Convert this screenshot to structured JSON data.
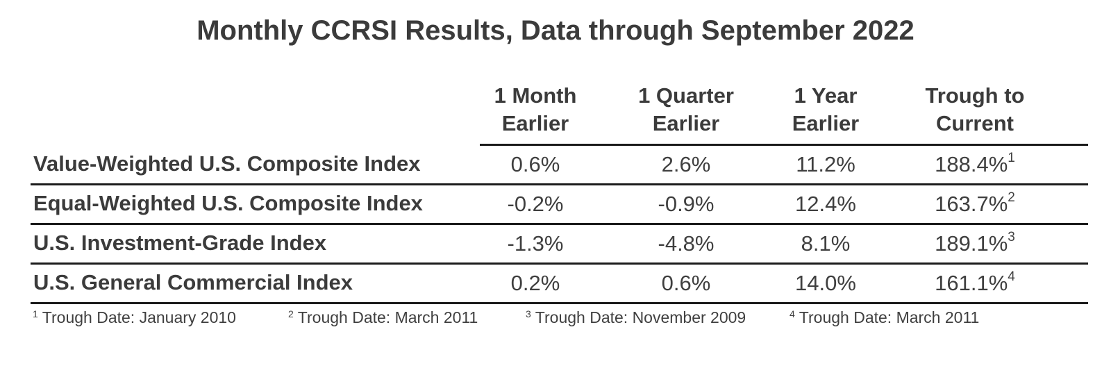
{
  "title": "Monthly CCRSI Results, Data through September 2022",
  "chart_data": {
    "type": "table",
    "title": "Monthly CCRSI Results, Data through September 2022",
    "columns": [
      {
        "line1": "1 Month",
        "line2": "Earlier"
      },
      {
        "line1": "1 Quarter",
        "line2": "Earlier"
      },
      {
        "line1": "1 Year",
        "line2": "Earlier"
      },
      {
        "line1": "Trough to",
        "line2": "Current"
      }
    ],
    "rows": [
      {
        "label": "Value-Weighted U.S. Composite Index",
        "values": [
          "0.6%",
          "2.6%",
          "11.2%",
          "188.4%"
        ],
        "footnote_ref": "1"
      },
      {
        "label": "Equal-Weighted U.S. Composite Index",
        "values": [
          "-0.2%",
          "-0.9%",
          "12.4%",
          "163.7%"
        ],
        "footnote_ref": "2"
      },
      {
        "label": "U.S. Investment-Grade Index",
        "values": [
          "-1.3%",
          "-4.8%",
          "8.1%",
          "189.1%"
        ],
        "footnote_ref": "3"
      },
      {
        "label": "U.S. General Commercial Index",
        "values": [
          "0.2%",
          "0.6%",
          "14.0%",
          "161.1%"
        ],
        "footnote_ref": "4"
      }
    ],
    "footnotes": [
      {
        "mark": "1",
        "text": "Trough Date: January 2010"
      },
      {
        "mark": "2",
        "text": "Trough Date: March 2011"
      },
      {
        "mark": "3",
        "text": "Trough Date: November 2009"
      },
      {
        "mark": "4",
        "text": "Trough Date: March 2011"
      }
    ]
  }
}
